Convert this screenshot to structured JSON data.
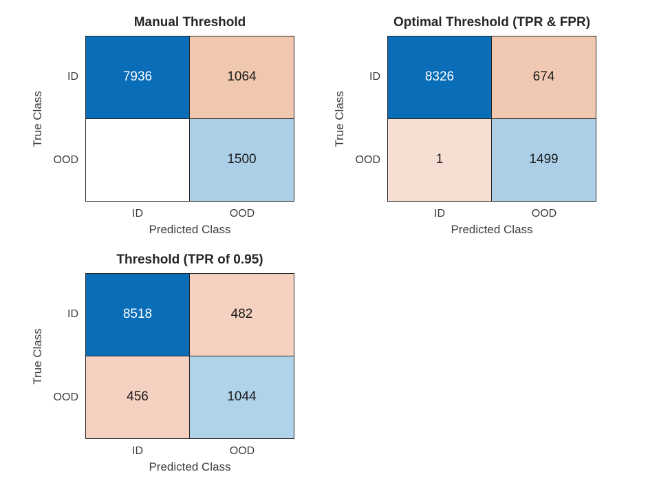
{
  "figure": {
    "background": "#ffffff",
    "title_color": "#262626",
    "label_color": "#3c3c3c",
    "grid_line_color": "#262626"
  },
  "charts": [
    {
      "title": "Manual Threshold",
      "xlabel": "Predicted Class",
      "ylabel": "True Class",
      "x_ticks": [
        "ID",
        "OOD"
      ],
      "y_ticks": [
        "ID",
        "OOD"
      ],
      "cells": [
        [
          {
            "value": "7936",
            "bg": "#0a6db8",
            "fg": "#ffffff"
          },
          {
            "value": "1064",
            "bg": "#f1c7b0",
            "fg": "#1a1a1a"
          }
        ],
        [
          {
            "value": "",
            "bg": "#ffffff",
            "fg": "#1a1a1a"
          },
          {
            "value": "1500",
            "bg": "#accfe8",
            "fg": "#1a1a1a"
          }
        ]
      ]
    },
    {
      "title": "Optimal Threshold (TPR & FPR)",
      "xlabel": "Predicted Class",
      "ylabel": "True Class",
      "x_ticks": [
        "ID",
        "OOD"
      ],
      "y_ticks": [
        "ID",
        "OOD"
      ],
      "cells": [
        [
          {
            "value": "8326",
            "bg": "#0a6db8",
            "fg": "#ffffff"
          },
          {
            "value": "674",
            "bg": "#f1c9b3",
            "fg": "#1a1a1a"
          }
        ],
        [
          {
            "value": "1",
            "bg": "#f7ded2",
            "fg": "#1a1a1a"
          },
          {
            "value": "1499",
            "bg": "#accfe8",
            "fg": "#1a1a1a"
          }
        ]
      ]
    },
    {
      "title": "Threshold (TPR of 0.95)",
      "xlabel": "Predicted Class",
      "ylabel": "True Class",
      "x_ticks": [
        "ID",
        "OOD"
      ],
      "y_ticks": [
        "ID",
        "OOD"
      ],
      "cells": [
        [
          {
            "value": "8518",
            "bg": "#0a6db8",
            "fg": "#ffffff"
          },
          {
            "value": "482",
            "bg": "#f4d1c0",
            "fg": "#1a1a1a"
          }
        ],
        [
          {
            "value": "456",
            "bg": "#f4d1c0",
            "fg": "#1a1a1a"
          },
          {
            "value": "1044",
            "bg": "#b1d3ea",
            "fg": "#1a1a1a"
          }
        ]
      ]
    }
  ],
  "chart_data": [
    {
      "type": "heatmap",
      "subtype": "confusion-matrix",
      "title": "Manual Threshold",
      "xlabel": "Predicted Class",
      "ylabel": "True Class",
      "x_categories": [
        "ID",
        "OOD"
      ],
      "y_categories": [
        "ID",
        "OOD"
      ],
      "matrix": [
        [
          7936,
          1064
        ],
        [
          null,
          1500
        ]
      ],
      "notes": "row = true class, column = predicted class; OOD/ID cell is empty (blank white)"
    },
    {
      "type": "heatmap",
      "subtype": "confusion-matrix",
      "title": "Optimal Threshold (TPR & FPR)",
      "xlabel": "Predicted Class",
      "ylabel": "True Class",
      "x_categories": [
        "ID",
        "OOD"
      ],
      "y_categories": [
        "ID",
        "OOD"
      ],
      "matrix": [
        [
          8326,
          674
        ],
        [
          1,
          1499
        ]
      ],
      "notes": "row = true class, column = predicted class"
    },
    {
      "type": "heatmap",
      "subtype": "confusion-matrix",
      "title": "Threshold (TPR of 0.95)",
      "xlabel": "Predicted Class",
      "ylabel": "True Class",
      "x_categories": [
        "ID",
        "OOD"
      ],
      "y_categories": [
        "ID",
        "OOD"
      ],
      "matrix": [
        [
          8518,
          482
        ],
        [
          456,
          1044
        ]
      ],
      "notes": "row = true class, column = predicted class"
    }
  ]
}
